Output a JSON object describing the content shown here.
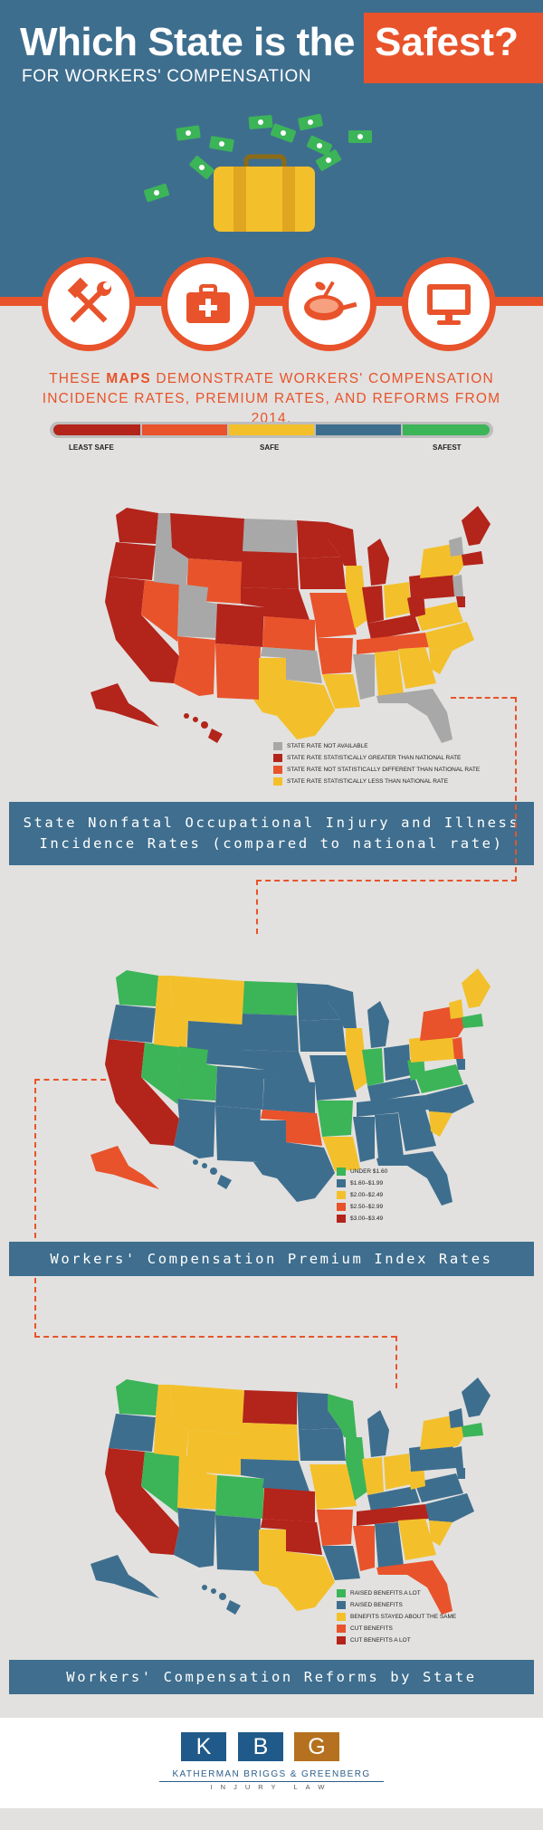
{
  "header": {
    "title_main": "Which State is the",
    "title_highlight": "Safest?",
    "subtitle": "FOR WORKERS' COMPENSATION",
    "icons": [
      "hammer-wrench-icon",
      "first-aid-kit-icon",
      "cooking-pan-icon",
      "computer-monitor-icon"
    ]
  },
  "intro": {
    "part1": "These",
    "bold": "maps",
    "part2": "demonstrate workers' compensation incidence rates, premium rates, and reforms from 2014."
  },
  "scale": {
    "labels": [
      "LEAST SAFE",
      "SAFE",
      "SAFEST"
    ],
    "colors": [
      "#b3241b",
      "#e8532b",
      "#f3c02b",
      "#3e6e8e",
      "#3cb458"
    ]
  },
  "map1": {
    "title_line1": "State Nonfatal Occupational Injury and Illness",
    "title_line2": "Incidence Rates (compared to national rate)",
    "legend": [
      {
        "label": "STATE RATE NOT AVAILABLE",
        "color": "#a8a8a8"
      },
      {
        "label": "STATE RATE STATISTICALLY GREATER THAN NATIONAL RATE",
        "color": "#b3241b"
      },
      {
        "label": "STATE RATE NOT STATISTICALLY DIFFERENT THAN NATIONAL RATE",
        "color": "#e8532b"
      },
      {
        "label": "STATE RATE STATISTICALLY LESS THAN NATIONAL RATE",
        "color": "#f3c02b"
      }
    ]
  },
  "map2": {
    "title": "Workers' Compensation Premium Index Rates",
    "legend": [
      {
        "label": "UNDER $1.60",
        "color": "#3cb458"
      },
      {
        "label": "$1.60–$1.99",
        "color": "#3e6e8e"
      },
      {
        "label": "$2.00–$2.49",
        "color": "#f3c02b"
      },
      {
        "label": "$2.50–$2.99",
        "color": "#e8532b"
      },
      {
        "label": "$3.00–$3.49",
        "color": "#b3241b"
      }
    ]
  },
  "map3": {
    "title": "Workers' Compensation Reforms by State",
    "legend": [
      {
        "label": "RAISED BENEFITS A LOT",
        "color": "#3cb458"
      },
      {
        "label": "RAISED BENEFITS",
        "color": "#3e6e8e"
      },
      {
        "label": "BENEFITS STAYED ABOUT THE SAME",
        "color": "#f3c02b"
      },
      {
        "label": "CUT BENEFITS",
        "color": "#e8532b"
      },
      {
        "label": "CUT BENEFITS A LOT",
        "color": "#b3241b"
      }
    ]
  },
  "footer": {
    "logo_letters": [
      "K",
      "B",
      "G"
    ],
    "logo_colors": [
      "#1f5a8a",
      "#1f5a8a",
      "#b5711f"
    ],
    "firm_name": "KATHERMAN BRIGGS & GREENBERG",
    "firm_sub": "INJURY LAW"
  }
}
